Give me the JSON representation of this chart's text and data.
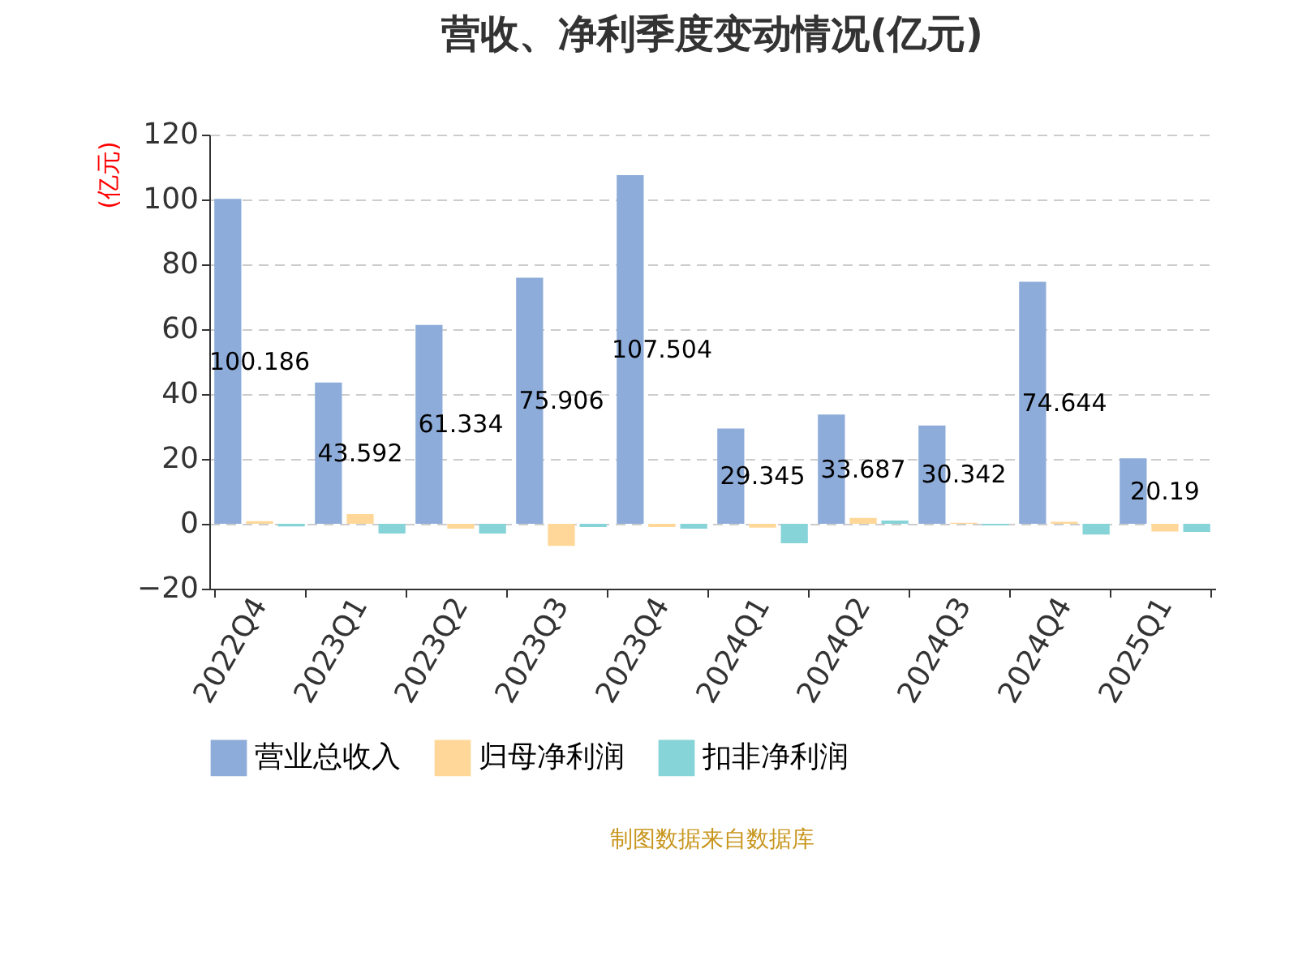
{
  "chart_data": {
    "type": "bar",
    "title": "营收、净利季度变动情况(亿元)",
    "ylabel": "(亿元)",
    "categories": [
      "2022Q4",
      "2023Q1",
      "2023Q2",
      "2023Q3",
      "2023Q4",
      "2024Q1",
      "2024Q2",
      "2024Q3",
      "2024Q4",
      "2025Q1"
    ],
    "series": [
      {
        "name": "营业总收入",
        "color": "#8eacd9",
        "values": [
          100.186,
          43.592,
          61.334,
          75.906,
          107.504,
          29.345,
          33.687,
          30.342,
          74.644,
          20.19
        ],
        "value_labels": [
          "100.186",
          "43.592",
          "61.334",
          "75.906",
          "107.504",
          "29.345",
          "33.687",
          "30.342",
          "74.644",
          "20.19"
        ]
      },
      {
        "name": "归母净利润",
        "color": "#ffd899",
        "values": [
          0.8,
          3.0,
          -1.5,
          -6.8,
          -1.0,
          -1.2,
          1.8,
          0.3,
          0.6,
          -2.4
        ]
      },
      {
        "name": "扣非净利润",
        "color": "#86d4d8",
        "values": [
          -0.8,
          -3.0,
          -3.0,
          -1.0,
          -1.5,
          -6.0,
          1.0,
          -0.5,
          -3.3,
          -2.5
        ]
      }
    ],
    "ylim": [
      -20,
      120
    ],
    "yticks": [
      -20,
      0,
      20,
      40,
      60,
      80,
      100,
      120
    ],
    "grid": "y",
    "legend": "bottom",
    "annotations": [
      "制图数据来自数据库"
    ]
  }
}
